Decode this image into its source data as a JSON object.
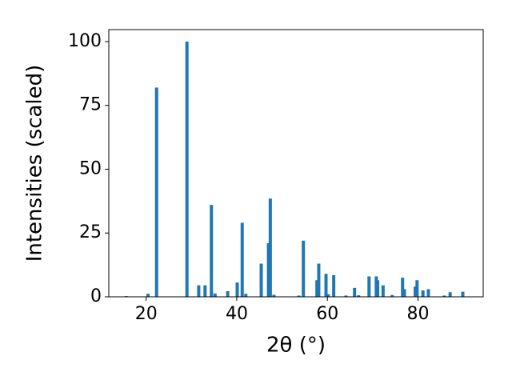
{
  "chart_data": {
    "type": "bar",
    "x_label": "2θ (°)",
    "y_label": "Intensities (scaled)",
    "x": [
      15.6,
      20.4,
      22.3,
      29.0,
      31.6,
      33.0,
      34.4,
      35.2,
      38.0,
      40.1,
      41.2,
      42.0,
      45.4,
      47.0,
      47.4,
      48.2,
      53.7,
      54.7,
      57.7,
      58.1,
      59.7,
      60.2,
      61.4,
      64.1,
      66.0,
      66.9,
      69.2,
      70.8,
      71.1,
      72.3,
      74.3,
      76.6,
      77.0,
      79.4,
      79.8,
      81.1,
      82.3,
      85.8,
      87.1,
      89.9
    ],
    "values": [
      0.3,
      1.2,
      82,
      100,
      4.5,
      4.5,
      36,
      1.3,
      2.2,
      5.6,
      29,
      1.2,
      13,
      21,
      38.5,
      0.8,
      0.5,
      22,
      6.5,
      13,
      9,
      1,
      8.5,
      0.5,
      3.5,
      0.6,
      8,
      8,
      6.5,
      4.5,
      0.7,
      7.5,
      3,
      4,
      6.5,
      2.5,
      3,
      0.5,
      1.8,
      2
    ],
    "color": "#1f77b4",
    "xlim": [
      11.75,
      94.4
    ],
    "ylim": [
      0,
      104.7
    ],
    "xticks": [
      20,
      40,
      60,
      80
    ],
    "yticks": [
      0,
      25,
      50,
      75,
      100
    ]
  }
}
